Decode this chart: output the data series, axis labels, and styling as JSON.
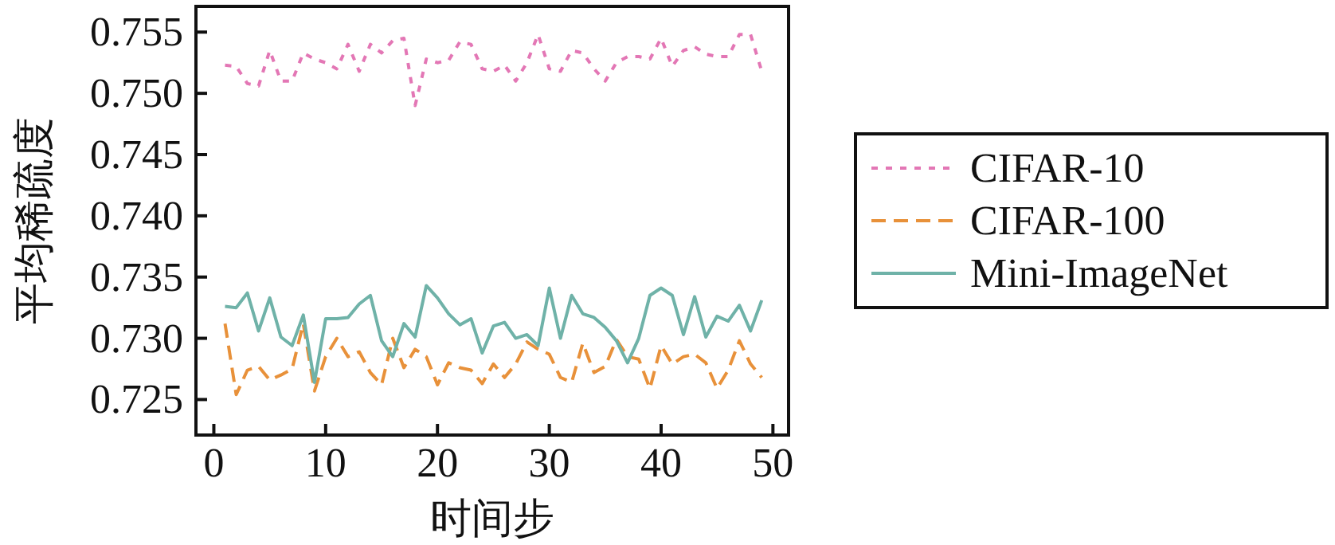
{
  "chart_data": {
    "type": "line",
    "xlabel": "时间步",
    "ylabel": "平均稀疏度",
    "x": [
      1,
      2,
      3,
      4,
      5,
      6,
      7,
      8,
      9,
      10,
      11,
      12,
      13,
      14,
      15,
      16,
      17,
      18,
      19,
      20,
      21,
      22,
      23,
      24,
      25,
      26,
      27,
      28,
      29,
      30,
      31,
      32,
      33,
      34,
      35,
      36,
      37,
      38,
      39,
      40,
      41,
      42,
      43,
      44,
      45,
      46,
      47,
      48,
      49
    ],
    "series": [
      {
        "name": "CIFAR-10",
        "color": "#e377b5",
        "line_style": "dotted",
        "values": [
          0.7523,
          0.7522,
          0.7508,
          0.7506,
          0.7535,
          0.751,
          0.751,
          0.7533,
          0.7528,
          0.7525,
          0.752,
          0.754,
          0.7518,
          0.754,
          0.7533,
          0.7543,
          0.7545,
          0.749,
          0.7528,
          0.7525,
          0.7527,
          0.7542,
          0.754,
          0.752,
          0.7518,
          0.7523,
          0.751,
          0.7525,
          0.7548,
          0.752,
          0.7518,
          0.7535,
          0.7533,
          0.752,
          0.751,
          0.7525,
          0.753,
          0.753,
          0.7528,
          0.7545,
          0.7522,
          0.7535,
          0.7538,
          0.7532,
          0.753,
          0.753,
          0.7548,
          0.7548,
          0.7518
        ]
      },
      {
        "name": "CIFAR-100",
        "color": "#e8913a",
        "line_style": "dashed",
        "values": [
          0.7312,
          0.7254,
          0.7274,
          0.7277,
          0.7266,
          0.727,
          0.7275,
          0.7312,
          0.7257,
          0.7285,
          0.73,
          0.7285,
          0.7289,
          0.7272,
          0.7262,
          0.73,
          0.7276,
          0.7291,
          0.7285,
          0.7262,
          0.728,
          0.7276,
          0.7274,
          0.7263,
          0.7279,
          0.7268,
          0.7279,
          0.7297,
          0.7291,
          0.7287,
          0.7268,
          0.7264,
          0.7296,
          0.7272,
          0.7277,
          0.7299,
          0.7285,
          0.7283,
          0.7259,
          0.7294,
          0.7279,
          0.7285,
          0.7287,
          0.728,
          0.7259,
          0.7274,
          0.7298,
          0.7279,
          0.7268
        ]
      },
      {
        "name": "Mini-ImageNet",
        "color": "#6fb2a8",
        "line_style": "solid",
        "values": [
          0.7326,
          0.7325,
          0.7337,
          0.7306,
          0.7333,
          0.7301,
          0.7294,
          0.7319,
          0.7264,
          0.7316,
          0.7316,
          0.7317,
          0.7328,
          0.7335,
          0.7298,
          0.7285,
          0.7312,
          0.7301,
          0.7343,
          0.7333,
          0.732,
          0.7311,
          0.7316,
          0.7288,
          0.731,
          0.7313,
          0.73,
          0.7303,
          0.7294,
          0.7341,
          0.73,
          0.7335,
          0.732,
          0.7317,
          0.7309,
          0.7298,
          0.728,
          0.73,
          0.7335,
          0.7341,
          0.7335,
          0.7303,
          0.7334,
          0.7301,
          0.7318,
          0.7314,
          0.7327,
          0.7306,
          0.7331
        ]
      }
    ],
    "xlim": [
      -1.6,
      51.4
    ],
    "ylim": [
      0.7221,
      0.7571
    ],
    "xticks": [
      0,
      10,
      20,
      30,
      40,
      50
    ],
    "yticks": [
      {
        "value": 0.725,
        "label": "0.725"
      },
      {
        "value": 0.73,
        "label": "0.730"
      },
      {
        "value": 0.735,
        "label": "0.735"
      },
      {
        "value": 0.74,
        "label": "0.740"
      },
      {
        "value": 0.745,
        "label": "0.745"
      },
      {
        "value": 0.75,
        "label": "0.750"
      },
      {
        "value": 0.755,
        "label": "0.755"
      }
    ],
    "grid": false,
    "legend": "right"
  }
}
